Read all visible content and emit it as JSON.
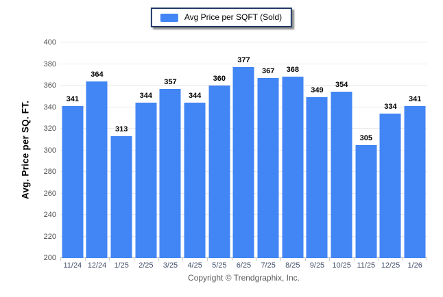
{
  "legend": {
    "label": "Avg Price per SQFT (Sold)",
    "swatch_color": "#4285f4"
  },
  "footer": {
    "copyright": "Copyright © Trendgraphix, Inc."
  },
  "chart_data": {
    "type": "bar",
    "title": "",
    "xlabel": "",
    "ylabel": "Avg. Price per SQ. FT.",
    "categories": [
      "11/24",
      "12/24",
      "1/25",
      "2/25",
      "3/25",
      "4/25",
      "5/25",
      "6/25",
      "7/25",
      "8/25",
      "9/25",
      "10/25",
      "11/25",
      "12/25",
      "1/26"
    ],
    "series": [
      {
        "name": "Avg Price per SQFT (Sold)",
        "values": [
          341,
          364,
          313,
          344,
          357,
          344,
          360,
          377,
          367,
          368,
          349,
          354,
          305,
          334,
          341
        ]
      }
    ],
    "ylim": [
      200,
      400
    ],
    "ytick_step": 20,
    "grid": true,
    "legend_position": "top-center",
    "bar_color": "#4285f4",
    "value_labels": true
  }
}
